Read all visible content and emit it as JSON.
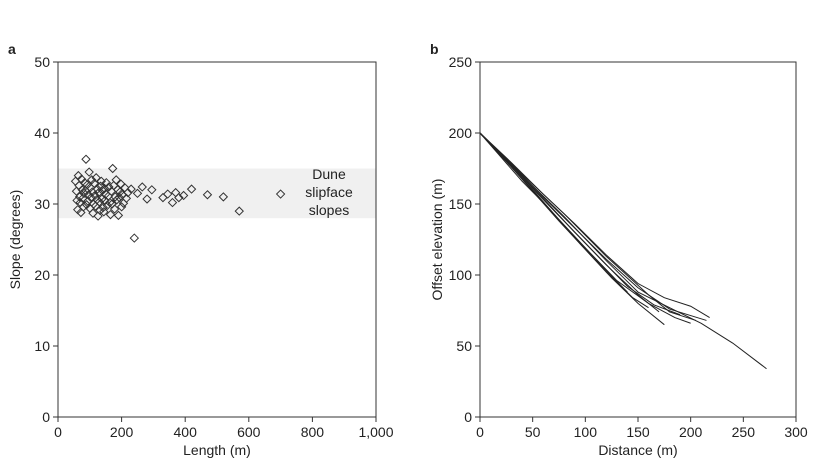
{
  "chart_data": [
    {
      "panel_label": "a",
      "type": "scatter",
      "xlabel": "Length (m)",
      "ylabel": "Slope (degrees)",
      "xlim": [
        0,
        1000
      ],
      "ylim": [
        0,
        50
      ],
      "xticks": [
        0,
        200,
        400,
        600,
        800,
        1000
      ],
      "xtick_labels": [
        "0",
        "200",
        "400",
        "600",
        "800",
        "1,000"
      ],
      "yticks": [
        0,
        10,
        20,
        30,
        40,
        50
      ],
      "ytick_labels": [
        "0",
        "10",
        "20",
        "30",
        "40",
        "50"
      ],
      "marker": "open-diamond",
      "shaded_band": {
        "y_range": [
          28,
          35
        ],
        "color": "#f0f0f0",
        "label_lines": [
          "Dune",
          "slipface",
          "slopes"
        ]
      },
      "points": [
        [
          55,
          33.2
        ],
        [
          58,
          31.8
        ],
        [
          60,
          30.5
        ],
        [
          62,
          29.2
        ],
        [
          64,
          34.0
        ],
        [
          66,
          32.6
        ],
        [
          68,
          31.0
        ],
        [
          70,
          30.2
        ],
        [
          72,
          28.8
        ],
        [
          74,
          33.5
        ],
        [
          76,
          32.0
        ],
        [
          78,
          30.8
        ],
        [
          80,
          29.6
        ],
        [
          82,
          31.5
        ],
        [
          84,
          33.0
        ],
        [
          86,
          31.9
        ],
        [
          88,
          36.3
        ],
        [
          90,
          29.9
        ],
        [
          92,
          32.7
        ],
        [
          94,
          30.4
        ],
        [
          96,
          31.3
        ],
        [
          98,
          34.5
        ],
        [
          100,
          29.4
        ],
        [
          102,
          32.3
        ],
        [
          104,
          30.9
        ],
        [
          106,
          33.4
        ],
        [
          108,
          31.7
        ],
        [
          110,
          28.7
        ],
        [
          112,
          30.0
        ],
        [
          114,
          32.9
        ],
        [
          116,
          31.2
        ],
        [
          118,
          29.7
        ],
        [
          120,
          33.7
        ],
        [
          122,
          30.6
        ],
        [
          124,
          32.1
        ],
        [
          126,
          28.3
        ],
        [
          128,
          31.6
        ],
        [
          130,
          30.3
        ],
        [
          132,
          29.1
        ],
        [
          134,
          32.5
        ],
        [
          136,
          33.2
        ],
        [
          138,
          30.7
        ],
        [
          140,
          31.9
        ],
        [
          142,
          29.5
        ],
        [
          144,
          28.9
        ],
        [
          146,
          32.2
        ],
        [
          148,
          30.5
        ],
        [
          150,
          31.4
        ],
        [
          152,
          33.0
        ],
        [
          155,
          29.8
        ],
        [
          158,
          31.1
        ],
        [
          160,
          32.4
        ],
        [
          163,
          30.2
        ],
        [
          165,
          28.5
        ],
        [
          168,
          31.8
        ],
        [
          170,
          30.0
        ],
        [
          172,
          35.0
        ],
        [
          175,
          32.6
        ],
        [
          178,
          29.3
        ],
        [
          180,
          31.0
        ],
        [
          183,
          33.4
        ],
        [
          185,
          30.6
        ],
        [
          188,
          32.0
        ],
        [
          190,
          28.4
        ],
        [
          193,
          30.9
        ],
        [
          195,
          31.7
        ],
        [
          198,
          32.8
        ],
        [
          200,
          29.6
        ],
        [
          203,
          31.3
        ],
        [
          206,
          30.1
        ],
        [
          210,
          32.3
        ],
        [
          215,
          30.8
        ],
        [
          220,
          31.6
        ],
        [
          230,
          32.1
        ],
        [
          240,
          25.2
        ],
        [
          250,
          31.5
        ],
        [
          265,
          32.4
        ],
        [
          280,
          30.7
        ],
        [
          295,
          32.0
        ],
        [
          330,
          30.9
        ],
        [
          345,
          31.4
        ],
        [
          360,
          30.2
        ],
        [
          370,
          31.6
        ],
        [
          380,
          30.9
        ],
        [
          395,
          31.2
        ],
        [
          420,
          32.1
        ],
        [
          470,
          31.3
        ],
        [
          520,
          31.0
        ],
        [
          570,
          29.0
        ],
        [
          700,
          31.4
        ]
      ]
    },
    {
      "panel_label": "b",
      "type": "line",
      "xlabel": "Distance (m)",
      "ylabel": "Offset elevation (m)",
      "xlim": [
        0,
        300
      ],
      "ylim": [
        0,
        250
      ],
      "xticks": [
        0,
        50,
        100,
        150,
        200,
        250,
        300
      ],
      "xtick_labels": [
        "0",
        "50",
        "100",
        "150",
        "200",
        "250",
        "300"
      ],
      "yticks": [
        0,
        50,
        100,
        150,
        200,
        250
      ],
      "ytick_labels": [
        "0",
        "50",
        "100",
        "150",
        "200",
        "250"
      ],
      "series": [
        {
          "values": [
            [
              0,
              200
            ],
            [
              20,
              183
            ],
            [
              40,
              166
            ],
            [
              60,
              151
            ],
            [
              80,
              135
            ],
            [
              100,
              119
            ],
            [
              120,
              103
            ],
            [
              140,
              88
            ]
          ]
        },
        {
          "values": [
            [
              0,
              200
            ],
            [
              25,
              180
            ],
            [
              50,
              159
            ],
            [
              75,
              138
            ],
            [
              100,
              118
            ],
            [
              125,
              98
            ],
            [
              150,
              80
            ],
            [
              175,
              65
            ]
          ]
        },
        {
          "values": [
            [
              0,
              200
            ],
            [
              30,
              177
            ],
            [
              60,
              154
            ],
            [
              90,
              130
            ],
            [
              120,
              107
            ],
            [
              150,
              86
            ],
            [
              170,
              74
            ]
          ]
        },
        {
          "values": [
            [
              0,
              200
            ],
            [
              20,
              184
            ],
            [
              45,
              164
            ],
            [
              70,
              143
            ],
            [
              95,
              122
            ],
            [
              120,
              102
            ],
            [
              145,
              84
            ],
            [
              160,
              77
            ]
          ]
        },
        {
          "values": [
            [
              0,
              200
            ],
            [
              30,
              178
            ],
            [
              60,
              155
            ],
            [
              90,
              133
            ],
            [
              120,
              111
            ],
            [
              150,
              91
            ],
            [
              180,
              76
            ],
            [
              215,
              68
            ]
          ]
        },
        {
          "values": [
            [
              0,
              200
            ],
            [
              25,
              181
            ],
            [
              55,
              157
            ],
            [
              85,
              134
            ],
            [
              115,
              111
            ],
            [
              140,
              92
            ],
            [
              165,
              79
            ],
            [
              190,
              72
            ]
          ]
        },
        {
          "values": [
            [
              0,
              200
            ],
            [
              30,
              179
            ],
            [
              60,
              157
            ],
            [
              90,
              136
            ],
            [
              120,
              114
            ],
            [
              150,
              94
            ],
            [
              175,
              84
            ],
            [
              200,
              78
            ],
            [
              218,
              70
            ]
          ]
        },
        {
          "values": [
            [
              0,
              200
            ],
            [
              25,
              180
            ],
            [
              50,
              160
            ],
            [
              75,
              139
            ],
            [
              100,
              119
            ],
            [
              130,
              96
            ],
            [
              160,
              80
            ],
            [
              185,
              70
            ],
            [
              200,
              66
            ]
          ]
        },
        {
          "values": [
            [
              0,
              200
            ],
            [
              40,
              171
            ],
            [
              80,
              143
            ],
            [
              120,
              113
            ],
            [
              160,
              86
            ],
            [
              180,
              74
            ],
            [
              205,
              68
            ]
          ]
        },
        {
          "values": [
            [
              0,
              200
            ],
            [
              40,
              170
            ],
            [
              80,
              141
            ],
            [
              120,
              110
            ],
            [
              150,
              88
            ],
            [
              180,
              77
            ],
            [
              210,
              66
            ],
            [
              240,
              52
            ],
            [
              272,
              34
            ]
          ]
        }
      ]
    }
  ]
}
